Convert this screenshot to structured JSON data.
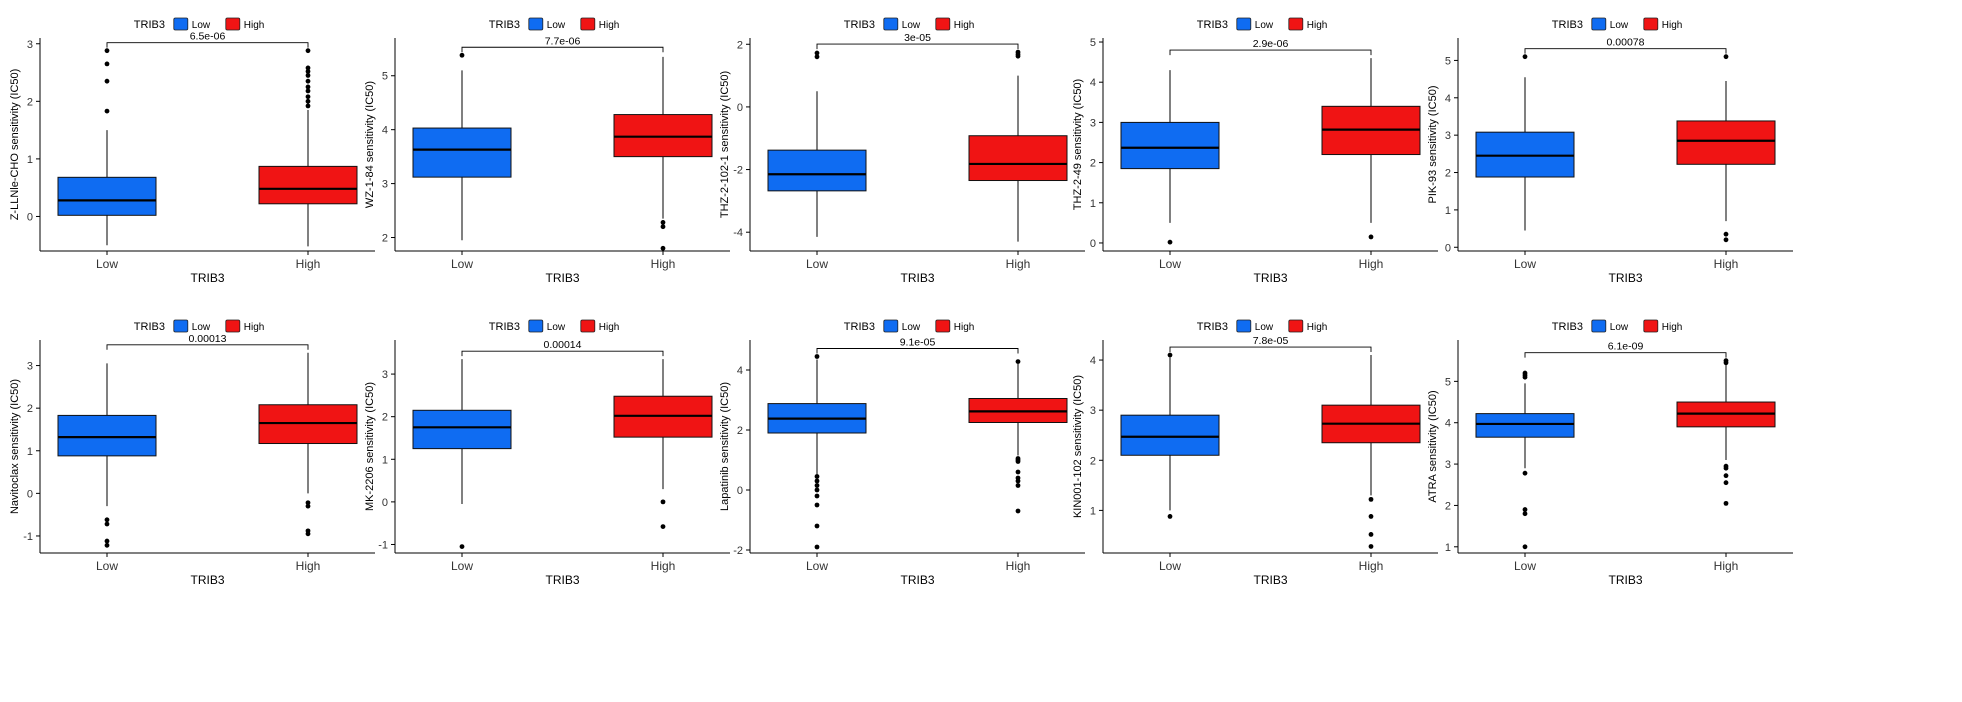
{
  "colors": {
    "low": "#0f6cf2",
    "high": "#f01414",
    "axis": "#000000",
    "tick_text": "#333333"
  },
  "chart_data": [
    {
      "type": "boxplot",
      "legend_title": "TRIB3",
      "legend_labels": [
        "Low",
        "High"
      ],
      "xlabel": "TRIB3",
      "ylabel": "Z-LLNle-CHO sensitivity (IC50)",
      "categories": [
        "Low",
        "High"
      ],
      "ylim": [
        -0.6,
        3.1
      ],
      "yticks": [
        0,
        1,
        2,
        3
      ],
      "pvalue": "6.5e-06",
      "boxes": [
        {
          "group": "Low",
          "q1": 0.02,
          "median": 0.28,
          "q3": 0.68,
          "whisker_low": -0.5,
          "whisker_high": 1.5,
          "outliers": [
            1.83,
            2.35,
            2.65,
            2.88
          ]
        },
        {
          "group": "High",
          "q1": 0.22,
          "median": 0.48,
          "q3": 0.87,
          "whisker_low": -0.52,
          "whisker_high": 1.85,
          "outliers": [
            1.92,
            2.0,
            2.08,
            2.18,
            2.25,
            2.35,
            2.45,
            2.52,
            2.58,
            2.88
          ]
        }
      ]
    },
    {
      "type": "boxplot",
      "legend_title": "TRIB3",
      "legend_labels": [
        "Low",
        "High"
      ],
      "xlabel": "TRIB3",
      "ylabel": "WZ-1-84 sensitivity (IC50)",
      "categories": [
        "Low",
        "High"
      ],
      "ylim": [
        1.75,
        5.7
      ],
      "yticks": [
        2,
        3,
        4,
        5
      ],
      "pvalue": "7.7e-06",
      "boxes": [
        {
          "group": "Low",
          "q1": 3.12,
          "median": 3.63,
          "q3": 4.03,
          "whisker_low": 1.95,
          "whisker_high": 5.1,
          "outliers": [
            5.38
          ]
        },
        {
          "group": "High",
          "q1": 3.5,
          "median": 3.87,
          "q3": 4.28,
          "whisker_low": 2.35,
          "whisker_high": 5.35,
          "outliers": [
            1.8,
            2.2,
            2.28
          ]
        }
      ]
    },
    {
      "type": "boxplot",
      "legend_title": "TRIB3",
      "legend_labels": [
        "Low",
        "High"
      ],
      "xlabel": "TRIB3",
      "ylabel": "THZ-2-102-1 sensitivity (IC50)",
      "categories": [
        "Low",
        "High"
      ],
      "ylim": [
        -4.6,
        2.2
      ],
      "yticks": [
        -4,
        -2,
        0,
        2
      ],
      "pvalue": "3e-05",
      "boxes": [
        {
          "group": "Low",
          "q1": -2.68,
          "median": -2.15,
          "q3": -1.38,
          "whisker_low": -4.15,
          "whisker_high": 0.5,
          "outliers": [
            1.6,
            1.72
          ]
        },
        {
          "group": "High",
          "q1": -2.35,
          "median": -1.82,
          "q3": -0.92,
          "whisker_low": -4.3,
          "whisker_high": 1.0,
          "outliers": [
            1.62,
            1.68,
            1.75
          ]
        }
      ]
    },
    {
      "type": "boxplot",
      "legend_title": "TRIB3",
      "legend_labels": [
        "Low",
        "High"
      ],
      "xlabel": "TRIB3",
      "ylabel": "THZ-2-49 sensitivity (IC50)",
      "categories": [
        "Low",
        "High"
      ],
      "ylim": [
        -0.2,
        5.1
      ],
      "yticks": [
        0,
        1,
        2,
        3,
        4,
        5
      ],
      "pvalue": "2.9e-06",
      "boxes": [
        {
          "group": "Low",
          "q1": 1.85,
          "median": 2.37,
          "q3": 3.0,
          "whisker_low": 0.5,
          "whisker_high": 4.3,
          "outliers": [
            0.02
          ]
        },
        {
          "group": "High",
          "q1": 2.2,
          "median": 2.82,
          "q3": 3.4,
          "whisker_low": 0.5,
          "whisker_high": 4.6,
          "outliers": [
            0.15
          ]
        }
      ]
    },
    {
      "type": "boxplot",
      "legend_title": "TRIB3",
      "legend_labels": [
        "Low",
        "High"
      ],
      "xlabel": "TRIB3",
      "ylabel": "PIK-93 sensitivity (IC50)",
      "categories": [
        "Low",
        "High"
      ],
      "ylim": [
        -0.1,
        5.6
      ],
      "yticks": [
        0,
        1,
        2,
        3,
        4,
        5
      ],
      "pvalue": "0.00078",
      "boxes": [
        {
          "group": "Low",
          "q1": 1.88,
          "median": 2.45,
          "q3": 3.08,
          "whisker_low": 0.45,
          "whisker_high": 4.55,
          "outliers": [
            5.1
          ]
        },
        {
          "group": "High",
          "q1": 2.22,
          "median": 2.85,
          "q3": 3.38,
          "whisker_low": 0.7,
          "whisker_high": 4.45,
          "outliers": [
            0.2,
            0.35,
            5.1
          ]
        }
      ]
    },
    {
      "type": "boxplot",
      "legend_title": "TRIB3",
      "legend_labels": [
        "Low",
        "High"
      ],
      "xlabel": "TRIB3",
      "ylabel": "Navitoclax sensitivity (IC50)",
      "categories": [
        "Low",
        "High"
      ],
      "ylim": [
        -1.4,
        3.6
      ],
      "yticks": [
        -1,
        0,
        1,
        2,
        3
      ],
      "pvalue": "0.00013",
      "boxes": [
        {
          "group": "Low",
          "q1": 0.88,
          "median": 1.32,
          "q3": 1.83,
          "whisker_low": -0.3,
          "whisker_high": 3.05,
          "outliers": [
            -0.62,
            -0.72,
            -1.12,
            -1.22
          ]
        },
        {
          "group": "High",
          "q1": 1.17,
          "median": 1.65,
          "q3": 2.08,
          "whisker_low": 0.0,
          "whisker_high": 3.3,
          "outliers": [
            -0.22,
            -0.3,
            -0.88,
            -0.95
          ]
        }
      ]
    },
    {
      "type": "boxplot",
      "legend_title": "TRIB3",
      "legend_labels": [
        "Low",
        "High"
      ],
      "xlabel": "TRIB3",
      "ylabel": "MK-2206 sensitivity (IC50)",
      "categories": [
        "Low",
        "High"
      ],
      "ylim": [
        -1.2,
        3.8
      ],
      "yticks": [
        -1,
        0,
        1,
        2,
        3
      ],
      "pvalue": "0.00014",
      "boxes": [
        {
          "group": "Low",
          "q1": 1.25,
          "median": 1.75,
          "q3": 2.15,
          "whisker_low": -0.05,
          "whisker_high": 3.35,
          "outliers": [
            -1.05
          ]
        },
        {
          "group": "High",
          "q1": 1.52,
          "median": 2.02,
          "q3": 2.48,
          "whisker_low": 0.3,
          "whisker_high": 3.35,
          "outliers": [
            0.0,
            -0.58
          ]
        }
      ]
    },
    {
      "type": "boxplot",
      "legend_title": "TRIB3",
      "legend_labels": [
        "Low",
        "High"
      ],
      "xlabel": "TRIB3",
      "ylabel": "Lapatinib sensitivity (IC50)",
      "categories": [
        "Low",
        "High"
      ],
      "ylim": [
        -2.1,
        5.0
      ],
      "yticks": [
        -2,
        0,
        2,
        4
      ],
      "pvalue": "9.1e-05",
      "boxes": [
        {
          "group": "Low",
          "q1": 1.9,
          "median": 2.38,
          "q3": 2.88,
          "whisker_low": 0.5,
          "whisker_high": 4.35,
          "outliers": [
            4.45,
            0.45,
            0.3,
            0.15,
            0.0,
            -0.2,
            -0.5,
            -1.2,
            -1.9
          ]
        },
        {
          "group": "High",
          "q1": 2.25,
          "median": 2.62,
          "q3": 3.05,
          "whisker_low": 1.15,
          "whisker_high": 4.2,
          "outliers": [
            4.28,
            1.05,
            1.0,
            0.95,
            0.6,
            0.4,
            0.3,
            0.15,
            -0.7
          ]
        }
      ]
    },
    {
      "type": "boxplot",
      "legend_title": "TRIB3",
      "legend_labels": [
        "Low",
        "High"
      ],
      "xlabel": "TRIB3",
      "ylabel": "KIN001-102 sensitivity (IC50)",
      "categories": [
        "Low",
        "High"
      ],
      "ylim": [
        0.15,
        4.4
      ],
      "yticks": [
        1,
        2,
        3,
        4
      ],
      "pvalue": "7.8e-05",
      "boxes": [
        {
          "group": "Low",
          "q1": 2.1,
          "median": 2.47,
          "q3": 2.9,
          "whisker_low": 1.0,
          "whisker_high": 4.05,
          "outliers": [
            4.1,
            0.88
          ]
        },
        {
          "group": "High",
          "q1": 2.35,
          "median": 2.73,
          "q3": 3.1,
          "whisker_low": 1.3,
          "whisker_high": 4.1,
          "outliers": [
            1.22,
            0.88,
            0.52,
            0.28
          ]
        }
      ]
    },
    {
      "type": "boxplot",
      "legend_title": "TRIB3",
      "legend_labels": [
        "Low",
        "High"
      ],
      "xlabel": "TRIB3",
      "ylabel": "ATRA sensitivity (IC50)",
      "categories": [
        "Low",
        "High"
      ],
      "ylim": [
        0.85,
        6.0
      ],
      "yticks": [
        1,
        2,
        3,
        4,
        5
      ],
      "pvalue": "6.1e-09",
      "boxes": [
        {
          "group": "Low",
          "q1": 3.65,
          "median": 3.97,
          "q3": 4.22,
          "whisker_low": 2.9,
          "whisker_high": 4.95,
          "outliers": [
            5.1,
            5.15,
            5.2,
            2.78,
            1.9,
            1.8,
            1.0
          ]
        },
        {
          "group": "High",
          "q1": 3.9,
          "median": 4.22,
          "q3": 4.5,
          "whisker_low": 3.1,
          "whisker_high": 5.4,
          "outliers": [
            5.45,
            5.5,
            2.95,
            2.9,
            2.72,
            2.55,
            2.05
          ]
        }
      ]
    }
  ]
}
